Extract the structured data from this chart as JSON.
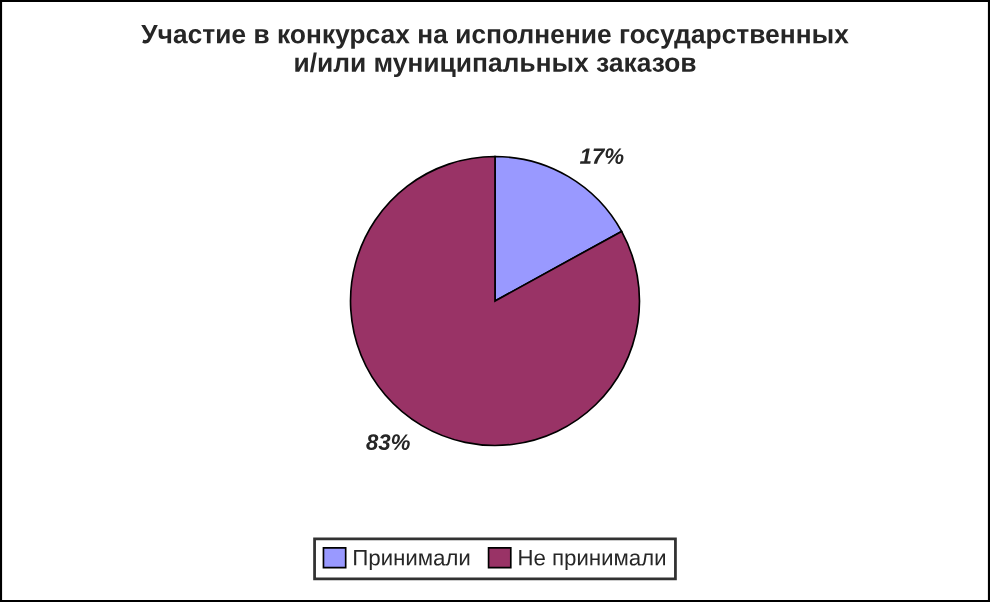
{
  "chart_data": {
    "type": "pie",
    "title": "Участие в конкурсах на исполнение государственных\nи/или муниципальных заказов",
    "categories": [
      "Принимали",
      "Не принимали"
    ],
    "values": [
      17,
      83
    ],
    "colors": [
      "#9999ff",
      "#993366"
    ],
    "value_labels": [
      "17%",
      "83%"
    ],
    "legend": "bottom"
  }
}
